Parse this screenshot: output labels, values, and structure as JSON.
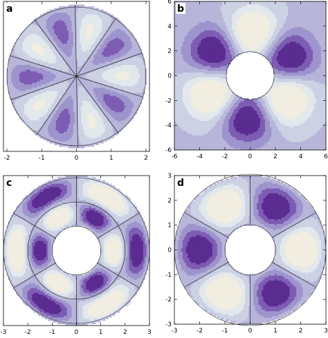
{
  "chart_data": [
    {
      "type": "contour",
      "panel_label": "a",
      "domain": "disk",
      "xlim": [
        -2.1,
        2.1
      ],
      "ylim": [
        -2.1,
        2.1
      ],
      "outer_radius": 2,
      "inner_radius": 0,
      "angular_lobes": 10,
      "radial_lobes": 1,
      "x_ticks": [
        "-2",
        "-1",
        "0",
        "1",
        "2"
      ],
      "x_tick_values": [
        -2,
        -1,
        0,
        1,
        2
      ],
      "y_ticks": []
    },
    {
      "type": "contour",
      "panel_label": "b",
      "domain": "square-with-hole",
      "xlim": [
        -6,
        6
      ],
      "ylim": [
        -6,
        6
      ],
      "hole_radius": 1.9,
      "angular_lobes": 6,
      "x_ticks": [
        "-6",
        "-4",
        "-2",
        "0",
        "2",
        "4",
        "6"
      ],
      "x_tick_values": [
        -6,
        -4,
        -2,
        0,
        2,
        4,
        6
      ],
      "y_ticks": [
        "-6",
        "-4",
        "-2",
        "0",
        "2",
        "4",
        "6"
      ],
      "y_tick_values": [
        -6,
        -4,
        -2,
        0,
        2,
        4,
        6
      ]
    },
    {
      "type": "contour",
      "panel_label": "c",
      "domain": "annulus",
      "xlim": [
        -3,
        3
      ],
      "ylim": [
        -3,
        3
      ],
      "outer_radius": 3,
      "inner_radius": 1,
      "angular_lobes": 6,
      "radial_lobes": 2,
      "x_ticks": [
        "-3",
        "-2",
        "-1",
        "0",
        "1",
        "2",
        "3"
      ],
      "x_tick_values": [
        -3,
        -2,
        -1,
        0,
        1,
        2,
        3
      ],
      "y_ticks": []
    },
    {
      "type": "contour",
      "panel_label": "d",
      "domain": "annulus",
      "xlim": [
        -3,
        3
      ],
      "ylim": [
        -3,
        3
      ],
      "outer_radius": 3,
      "inner_radius": 1,
      "angular_lobes": 6,
      "radial_lobes": 1,
      "x_ticks": [
        "-3",
        "-2",
        "-1",
        "0",
        "1",
        "2",
        "3"
      ],
      "x_tick_values": [
        -3,
        -2,
        -1,
        0,
        1,
        2,
        3
      ],
      "y_ticks": [
        "-3",
        "-2",
        "-1",
        "0",
        "1",
        "2",
        "3"
      ],
      "y_tick_values": [
        -3,
        -2,
        -1,
        0,
        1,
        2,
        3
      ]
    }
  ],
  "colors": {
    "level_ramp": [
      "#5a2c91",
      "#7d5cb3",
      "#9e94cd",
      "#b7b5d9",
      "#ccd2e4",
      "#e2e8ec",
      "#f1ede0"
    ],
    "nodal_line": "#222222",
    "frame": "#000000"
  }
}
